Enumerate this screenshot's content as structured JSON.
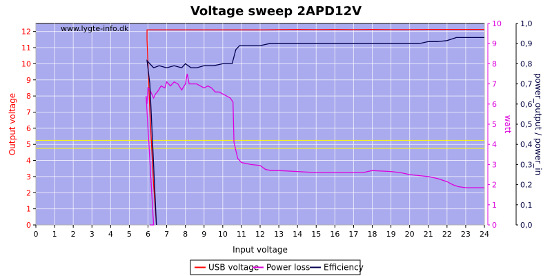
{
  "chart_data": {
    "type": "line",
    "title": "Voltage sweep 2APD12V",
    "watermark": "www.lygte-info.dk",
    "xlabel": "Input voltage",
    "xlim": [
      0,
      24
    ],
    "x_ticks": [
      "0",
      "1",
      "2",
      "3",
      "4",
      "5",
      "6",
      "7",
      "8",
      "9",
      "10",
      "11",
      "12",
      "13",
      "14",
      "15",
      "16",
      "17",
      "18",
      "19",
      "20",
      "21",
      "22",
      "23",
      "24"
    ],
    "y_left": {
      "label": "Output voltage",
      "lim": [
        0,
        12.5
      ],
      "ticks": [
        "0",
        "1",
        "2",
        "3",
        "4",
        "5",
        "6",
        "7",
        "8",
        "9",
        "10",
        "11",
        "12"
      ],
      "color": "#ff0000"
    },
    "y_mid": {
      "label": "watt",
      "lim": [
        0,
        10
      ],
      "ticks": [
        "0",
        "1",
        "2",
        "3",
        "4",
        "5",
        "6",
        "7",
        "8",
        "9",
        "10"
      ],
      "color": "#dd00dd"
    },
    "y_right": {
      "label": "power_output / power_in",
      "lim": [
        0,
        1
      ],
      "ticks": [
        "0,0",
        "0,1",
        "0,2",
        "0,3",
        "0,4",
        "0,5",
        "0,6",
        "0,7",
        "0,8",
        "0,9",
        "1,0"
      ],
      "color": "#000040"
    },
    "grid": true,
    "legend_position": "bottom",
    "reference_lines": [
      {
        "axis": "left",
        "value": 5.25,
        "color": "#ffff00"
      },
      {
        "axis": "left",
        "value": 4.75,
        "color": "#ffff00"
      }
    ],
    "series": [
      {
        "name": "USB voltage",
        "axis": "left",
        "color": "#ff0000",
        "x": [
          6.45,
          6.3,
          6.1,
          5.95,
          5.95,
          6.0,
          7,
          8,
          9,
          10,
          11,
          12,
          13,
          14,
          15,
          16,
          17,
          18,
          19,
          20,
          21,
          22,
          23,
          24
        ],
        "y": [
          0,
          2.5,
          7.0,
          11.5,
          12.1,
          12.1,
          12.1,
          12.1,
          12.1,
          12.1,
          12.1,
          12.1,
          12.12,
          12.13,
          12.12,
          12.13,
          12.12,
          12.13,
          12.12,
          12.12,
          12.13,
          12.13,
          12.13,
          12.13
        ]
      },
      {
        "name": "Power loss",
        "axis": "mid",
        "color": "#dd00dd",
        "x": [
          6.1,
          6.25,
          6.3,
          5.9,
          5.95,
          6.0,
          6.1,
          6.2,
          6.3,
          6.4,
          6.5,
          6.7,
          6.9,
          7.0,
          7.2,
          7.4,
          7.6,
          7.8,
          8.0,
          8.1,
          8.2,
          8.4,
          8.6,
          8.8,
          9.0,
          9.2,
          9.4,
          9.6,
          9.8,
          10.0,
          10.2,
          10.4,
          10.55,
          10.6,
          10.8,
          11.0,
          11.5,
          12.0,
          12.3,
          12.6,
          13,
          14,
          15,
          16,
          17,
          17.5,
          18,
          19,
          19.5,
          20,
          20.5,
          21,
          21.5,
          22,
          22.3,
          22.6,
          23,
          24
        ],
        "y": [
          0,
          0,
          0,
          6.4,
          6.0,
          6.8,
          6.7,
          6.5,
          6.3,
          6.5,
          6.6,
          6.9,
          6.8,
          7.1,
          6.9,
          7.1,
          7.0,
          6.7,
          7.0,
          7.5,
          7.0,
          7.0,
          7.0,
          6.9,
          6.8,
          6.9,
          6.8,
          6.6,
          6.6,
          6.5,
          6.4,
          6.3,
          6.1,
          4.1,
          3.3,
          3.1,
          3.0,
          2.95,
          2.75,
          2.7,
          2.7,
          2.65,
          2.6,
          2.6,
          2.6,
          2.6,
          2.7,
          2.65,
          2.6,
          2.5,
          2.45,
          2.4,
          2.3,
          2.15,
          2.0,
          1.9,
          1.85,
          1.85
        ]
      },
      {
        "name": "Efficiency",
        "axis": "right",
        "color": "#000050",
        "x": [
          6.45,
          6.3,
          6.1,
          5.95,
          6.0,
          6.3,
          6.6,
          7.0,
          7.4,
          7.8,
          8.0,
          8.3,
          8.6,
          9.0,
          9.5,
          10.0,
          10.5,
          10.7,
          10.9,
          11.2,
          11.6,
          12.0,
          12.5,
          13,
          14,
          15,
          16,
          17,
          18,
          19,
          20,
          20.5,
          21,
          21.5,
          22,
          22.5,
          23,
          24
        ],
        "y": [
          0,
          0.3,
          0.7,
          0.815,
          0.81,
          0.78,
          0.79,
          0.78,
          0.79,
          0.78,
          0.8,
          0.78,
          0.78,
          0.79,
          0.79,
          0.8,
          0.8,
          0.87,
          0.89,
          0.89,
          0.89,
          0.89,
          0.9,
          0.9,
          0.9,
          0.9,
          0.9,
          0.9,
          0.9,
          0.9,
          0.9,
          0.9,
          0.91,
          0.91,
          0.915,
          0.93,
          0.93,
          0.93
        ]
      }
    ]
  }
}
